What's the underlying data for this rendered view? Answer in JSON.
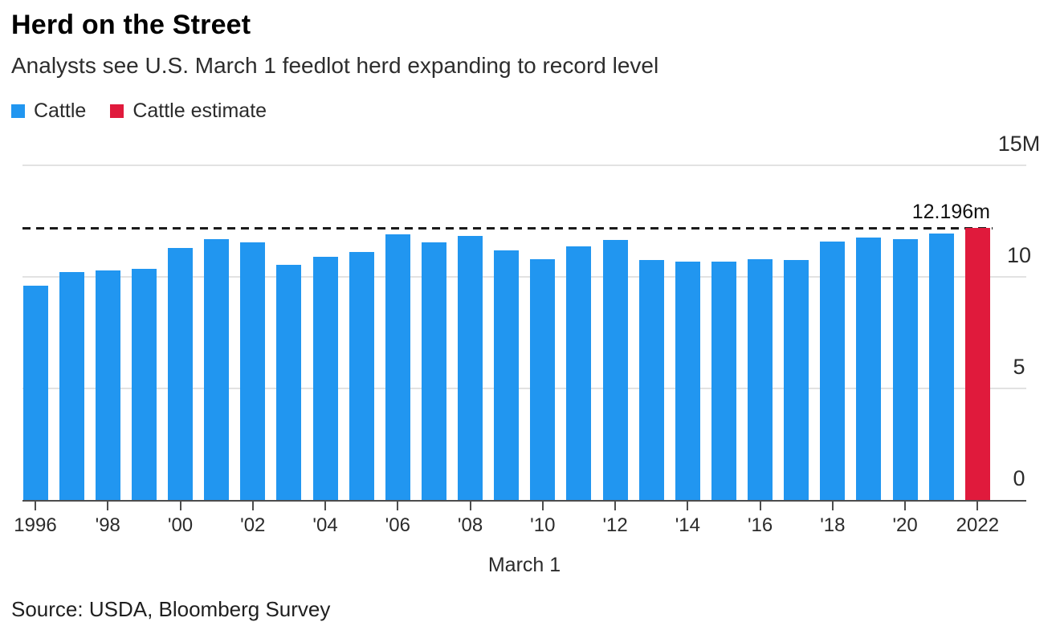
{
  "header": {
    "title": "Herd on the Street",
    "subtitle": "Analysts see U.S. March 1 feedlot herd expanding to record level"
  },
  "legend": {
    "items": [
      {
        "label": "Cattle",
        "color": "#2196f0"
      },
      {
        "label": "Cattle estimate",
        "color": "#e01a3c"
      }
    ]
  },
  "source": "Source: USDA, Bloomberg Survey",
  "colors": {
    "cattle_blue": "#2196f0",
    "estimate_red": "#e01a3c",
    "gridline": "#e2e2e2",
    "axis_line": "#4d4d4d",
    "dashed_line": "#1a1a1a"
  },
  "chart_data": {
    "type": "bar",
    "title": "Herd on the Street",
    "subtitle": "Analysts see U.S. March 1 feedlot herd expanding to record level",
    "xlabel": "March 1",
    "ylabel": "",
    "units": "millions of head",
    "ylim": [
      0,
      15
    ],
    "grid": true,
    "legend_position": "top-left",
    "y_ticks": [
      {
        "value": 0,
        "label": "0"
      },
      {
        "value": 5,
        "label": "5"
      },
      {
        "value": 10,
        "label": "10"
      },
      {
        "value": 15,
        "label": "15M"
      }
    ],
    "x_ticks": [
      {
        "year": 1996,
        "label": "1996"
      },
      {
        "year": 1998,
        "label": "'98"
      },
      {
        "year": 2000,
        "label": "'00"
      },
      {
        "year": 2002,
        "label": "'02"
      },
      {
        "year": 2004,
        "label": "'04"
      },
      {
        "year": 2006,
        "label": "'06"
      },
      {
        "year": 2008,
        "label": "'08"
      },
      {
        "year": 2010,
        "label": "'10"
      },
      {
        "year": 2012,
        "label": "'12"
      },
      {
        "year": 2014,
        "label": "'14"
      },
      {
        "year": 2016,
        "label": "'16"
      },
      {
        "year": 2018,
        "label": "'18"
      },
      {
        "year": 2020,
        "label": "'20"
      },
      {
        "year": 2022,
        "label": "2022"
      }
    ],
    "annotation": {
      "text": "12.196m",
      "value": 12.196
    },
    "series": [
      {
        "name": "Cattle",
        "color": "#2196f0",
        "years": [
          1996,
          1997,
          1998,
          1999,
          2000,
          2001,
          2002,
          2003,
          2004,
          2005,
          2006,
          2007,
          2008,
          2009,
          2010,
          2011,
          2012,
          2013,
          2014,
          2015,
          2016,
          2017,
          2018,
          2019,
          2020,
          2021
        ],
        "values": [
          9.6,
          10.2,
          10.3,
          10.35,
          11.3,
          11.7,
          11.55,
          10.55,
          10.9,
          11.1,
          11.9,
          11.55,
          11.85,
          11.2,
          10.8,
          11.35,
          11.65,
          10.75,
          10.7,
          10.7,
          10.8,
          10.75,
          11.6,
          11.75,
          11.7,
          11.95
        ]
      },
      {
        "name": "Cattle estimate",
        "color": "#e01a3c",
        "years": [
          2022
        ],
        "values": [
          12.196
        ]
      }
    ]
  }
}
